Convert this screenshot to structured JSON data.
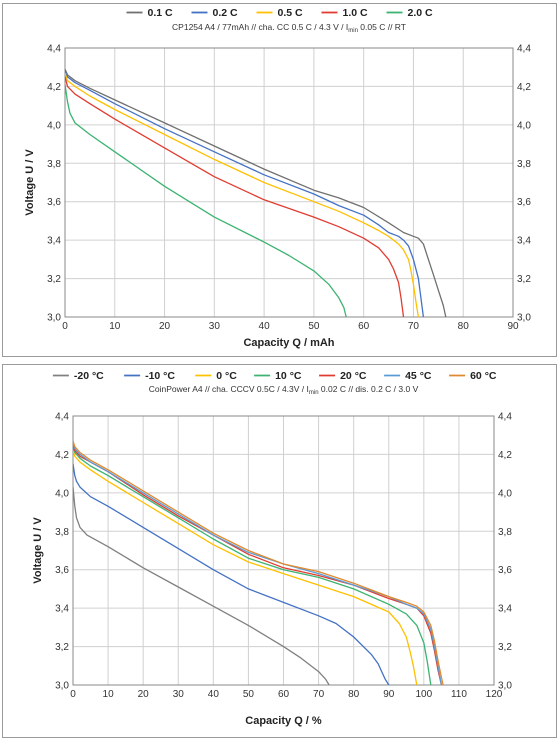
{
  "chart_data": [
    {
      "type": "line",
      "title": "",
      "subtitle_parts": [
        "CP1254  A4 / 77mAh  // cha. CC  0.5 C / 4.3 V / I",
        "min",
        " 0.05 C  // RT"
      ],
      "xlabel": "Capacity Q / mAh",
      "ylabel": "Voltage U / V",
      "xlim": [
        0,
        90
      ],
      "ylim": [
        3.0,
        4.4
      ],
      "xticks": [
        "0",
        "10",
        "20",
        "30",
        "40",
        "50",
        "60",
        "70",
        "80",
        "90"
      ],
      "yticks": [
        "3,0",
        "3,2",
        "3,4",
        "3,6",
        "3,8",
        "4,0",
        "4,2",
        "4,4"
      ],
      "grid": true,
      "legend_position": "top",
      "series": [
        {
          "name": "0.1 C",
          "color": "#707070",
          "x": [
            0,
            0.5,
            2,
            5,
            10,
            20,
            30,
            40,
            50,
            55,
            60,
            65,
            68,
            70,
            71,
            72,
            73,
            74,
            75,
            76,
            76.5
          ],
          "y": [
            4.29,
            4.26,
            4.23,
            4.19,
            4.13,
            4.01,
            3.89,
            3.77,
            3.66,
            3.62,
            3.57,
            3.49,
            3.44,
            3.42,
            3.41,
            3.38,
            3.3,
            3.22,
            3.14,
            3.06,
            3.0
          ]
        },
        {
          "name": "0.2 C",
          "color": "#4472c4",
          "x": [
            0,
            0.5,
            2,
            5,
            10,
            20,
            30,
            40,
            50,
            55,
            60,
            63,
            65,
            67,
            68,
            69,
            70,
            71,
            71.5,
            72
          ],
          "y": [
            4.28,
            4.25,
            4.22,
            4.18,
            4.11,
            3.98,
            3.86,
            3.74,
            3.64,
            3.58,
            3.53,
            3.48,
            3.44,
            3.42,
            3.4,
            3.37,
            3.3,
            3.2,
            3.1,
            3.0
          ]
        },
        {
          "name": "0.5 C",
          "color": "#ffc000",
          "x": [
            0,
            0.5,
            2,
            5,
            10,
            20,
            30,
            40,
            50,
            55,
            60,
            63,
            65,
            67,
            68,
            69,
            69.5,
            70,
            70.5,
            71
          ],
          "y": [
            4.27,
            4.23,
            4.2,
            4.15,
            4.08,
            3.95,
            3.82,
            3.7,
            3.6,
            3.55,
            3.49,
            3.45,
            3.42,
            3.38,
            3.35,
            3.3,
            3.24,
            3.17,
            3.08,
            3.0
          ]
        },
        {
          "name": "1.0 C",
          "color": "#e03c31",
          "x": [
            0,
            0.5,
            2,
            5,
            10,
            20,
            30,
            40,
            50,
            55,
            60,
            63,
            65,
            66,
            67,
            67.5,
            68
          ],
          "y": [
            4.25,
            4.2,
            4.16,
            4.11,
            4.03,
            3.88,
            3.73,
            3.61,
            3.52,
            3.47,
            3.41,
            3.36,
            3.3,
            3.25,
            3.18,
            3.1,
            3.0
          ]
        },
        {
          "name": "2.0 C",
          "color": "#3cb371",
          "x": [
            0,
            0.5,
            1,
            2,
            5,
            10,
            20,
            30,
            40,
            45,
            50,
            53,
            55,
            56,
            56.5
          ],
          "y": [
            4.21,
            4.12,
            4.06,
            4.01,
            3.95,
            3.86,
            3.68,
            3.52,
            3.39,
            3.32,
            3.24,
            3.17,
            3.1,
            3.05,
            3.0
          ]
        }
      ]
    },
    {
      "type": "line",
      "title": "",
      "subtitle_parts": [
        "CoinPower A4 // cha. CCCV 0.5C / 4.3V / I",
        "min",
        " 0.02 C // dis. 0.2 C / 3.0 V"
      ],
      "xlabel": "Capacity Q / %",
      "ylabel": "Voltage U / V",
      "xlim": [
        0,
        120
      ],
      "ylim": [
        3.0,
        4.4
      ],
      "xticks": [
        "0",
        "10",
        "20",
        "30",
        "40",
        "50",
        "60",
        "70",
        "80",
        "90",
        "100",
        "110",
        "120"
      ],
      "yticks": [
        "3,0",
        "3,2",
        "3,4",
        "3,6",
        "3,8",
        "4,0",
        "4,2",
        "4,4"
      ],
      "grid": true,
      "legend_position": "top",
      "series": [
        {
          "name": "-20 °C",
          "color": "#808080",
          "x": [
            0,
            0.5,
            1,
            2,
            4,
            10,
            20,
            30,
            40,
            50,
            60,
            65,
            70,
            72,
            73
          ],
          "y": [
            4.03,
            3.93,
            3.87,
            3.82,
            3.78,
            3.72,
            3.61,
            3.51,
            3.41,
            3.31,
            3.2,
            3.14,
            3.07,
            3.03,
            3.0
          ]
        },
        {
          "name": "-10 °C",
          "color": "#4472c4",
          "x": [
            0,
            0.5,
            1,
            2,
            5,
            10,
            20,
            30,
            40,
            50,
            60,
            70,
            75,
            80,
            85,
            87,
            88,
            89,
            90
          ],
          "y": [
            4.15,
            4.09,
            4.06,
            4.03,
            3.98,
            3.93,
            3.82,
            3.71,
            3.6,
            3.5,
            3.43,
            3.36,
            3.32,
            3.25,
            3.16,
            3.11,
            3.07,
            3.03,
            3.0
          ]
        },
        {
          "name": "0 °C",
          "color": "#ffc000",
          "x": [
            0,
            0.5,
            2,
            5,
            10,
            20,
            30,
            40,
            50,
            60,
            70,
            80,
            90,
            93,
            95,
            96,
            97,
            98
          ],
          "y": [
            4.22,
            4.19,
            4.16,
            4.12,
            4.06,
            3.95,
            3.84,
            3.73,
            3.64,
            3.58,
            3.52,
            3.46,
            3.38,
            3.32,
            3.25,
            3.18,
            3.1,
            3.0
          ]
        },
        {
          "name": "10 °C",
          "color": "#3cb371",
          "x": [
            0,
            0.5,
            2,
            5,
            10,
            20,
            30,
            40,
            50,
            60,
            70,
            80,
            90,
            95,
            98,
            100,
            101,
            102
          ],
          "y": [
            4.24,
            4.21,
            4.18,
            4.14,
            4.09,
            3.98,
            3.87,
            3.76,
            3.66,
            3.6,
            3.56,
            3.5,
            3.42,
            3.37,
            3.31,
            3.22,
            3.12,
            3.0
          ]
        },
        {
          "name": "20 °C",
          "color": "#e03c31",
          "x": [
            0,
            0.5,
            2,
            5,
            10,
            20,
            30,
            40,
            50,
            60,
            70,
            80,
            90,
            95,
            98,
            100,
            102,
            103,
            104,
            105
          ],
          "y": [
            4.25,
            4.22,
            4.19,
            4.16,
            4.11,
            3.99,
            3.88,
            3.78,
            3.68,
            3.61,
            3.57,
            3.52,
            3.45,
            3.42,
            3.4,
            3.36,
            3.27,
            3.18,
            3.08,
            3.0
          ]
        },
        {
          "name": "45 °C",
          "color": "#5b9bd5",
          "x": [
            0,
            0.5,
            2,
            5,
            10,
            20,
            30,
            40,
            50,
            60,
            70,
            80,
            90,
            95,
            98,
            100,
            102,
            103,
            104,
            105
          ],
          "y": [
            4.26,
            4.23,
            4.2,
            4.16,
            4.11,
            4.0,
            3.89,
            3.78,
            3.69,
            3.63,
            3.58,
            3.52,
            3.46,
            3.42,
            3.4,
            3.37,
            3.29,
            3.2,
            3.1,
            3.0
          ]
        },
        {
          "name": "60 °C",
          "color": "#e08a2e",
          "x": [
            0,
            0.5,
            2,
            5,
            10,
            20,
            30,
            40,
            50,
            60,
            70,
            80,
            90,
            95,
            98,
            100,
            102,
            103,
            104,
            105,
            105.5
          ],
          "y": [
            4.27,
            4.24,
            4.21,
            4.17,
            4.12,
            4.01,
            3.9,
            3.79,
            3.7,
            3.63,
            3.59,
            3.53,
            3.46,
            3.43,
            3.41,
            3.38,
            3.31,
            3.23,
            3.13,
            3.04,
            3.0
          ]
        }
      ]
    }
  ]
}
